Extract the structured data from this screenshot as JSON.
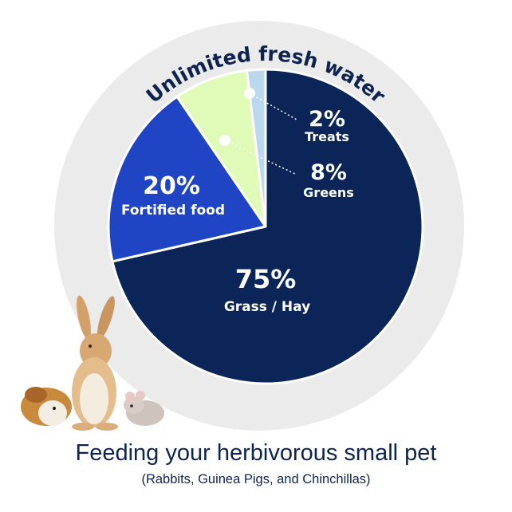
{
  "chart_data": {
    "type": "pie",
    "title": "Feeding your herbivorous small pet",
    "subtitle": "(Rabbits, Guinea Pigs, and Chinchillas)",
    "ring_label": "Unlimited fresh water",
    "start": "top",
    "direction": "clockwise",
    "slices": [
      {
        "label": "Grass / Hay",
        "value_label": "75%",
        "value": 75,
        "color": "#0b2559"
      },
      {
        "label": "Fortified food",
        "value_label": "20%",
        "value": 20,
        "color": "#1f44c4"
      },
      {
        "label": "Greens",
        "value_label": "8%",
        "value": 8,
        "color": "#e0fbb8"
      },
      {
        "label": "Treats",
        "value_label": "2%",
        "value": 2,
        "color": "#bcd8ee"
      }
    ],
    "ring_color": "#ebebeb",
    "text_color": "#0e2350"
  },
  "illustration": {
    "subjects": [
      "guinea-pig",
      "rabbit",
      "chinchilla"
    ]
  }
}
